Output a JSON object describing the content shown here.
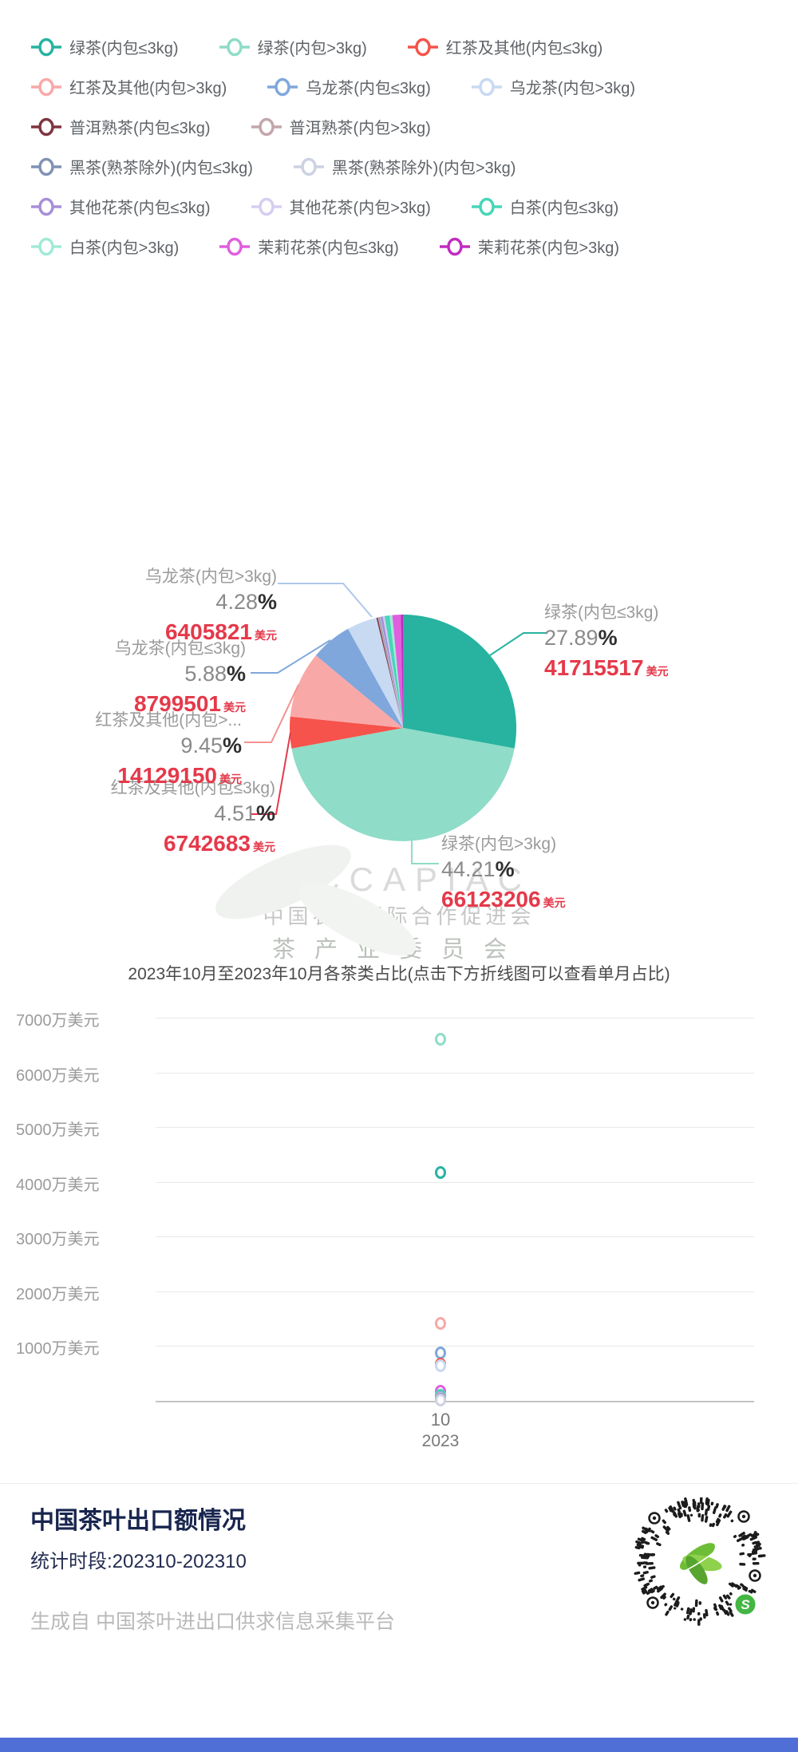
{
  "page": {
    "background": "#ffffff",
    "bottom_bar_color": "#4f6fd6"
  },
  "legend": {
    "rows": [
      [
        {
          "label": "绿茶(内包≤3kg)",
          "color": "#27b3a0"
        },
        {
          "label": "绿茶(内包>3kg)",
          "color": "#8fdcc8"
        },
        {
          "label": "红茶及其他(内包≤3kg)",
          "color": "#f5534b"
        }
      ],
      [
        {
          "label": "红茶及其他(内包>3kg)",
          "color": "#f9a8a8"
        },
        {
          "label": "乌龙茶(内包≤3kg)",
          "color": "#7fa7dc"
        },
        {
          "label": "乌龙茶(内包>3kg)",
          "color": "#c8d9f2"
        }
      ],
      [
        {
          "label": "普洱熟茶(内包≤3kg)",
          "color": "#7d3540"
        },
        {
          "label": "普洱熟茶(内包>3kg)",
          "color": "#c2a6ab"
        }
      ],
      [
        {
          "label": "黑茶(熟茶除外)(内包≤3kg)",
          "color": "#8092b4"
        },
        {
          "label": "黑茶(熟茶除外)(内包>3kg)",
          "color": "#ccd2e2"
        }
      ],
      [
        {
          "label": "其他花茶(内包≤3kg)",
          "color": "#a78fd8"
        },
        {
          "label": "其他花茶(内包>3kg)",
          "color": "#d6cdf0"
        },
        {
          "label": "白茶(内包≤3kg)",
          "color": "#46d6b8"
        }
      ],
      [
        {
          "label": "白茶(内包>3kg)",
          "color": "#a0ead6"
        },
        {
          "label": "茉莉花茶(内包≤3kg)",
          "color": "#df5fdf"
        },
        {
          "label": "茉莉花茶(内包>3kg)",
          "color": "#c02cc0"
        }
      ]
    ]
  },
  "chart_data": [
    {
      "type": "pie",
      "unit": "美元",
      "slices": [
        {
          "name": "绿茶(内包≤3kg)",
          "pct": 27.89,
          "value_usd": 41715517,
          "color": "#27b3a0"
        },
        {
          "name": "绿茶(内包>3kg)",
          "pct": 44.21,
          "value_usd": 66123206,
          "color": "#8fdcc8"
        },
        {
          "name": "红茶及其他(内包≤3kg)",
          "pct": 4.51,
          "value_usd": 6742683,
          "color": "#f5534b"
        },
        {
          "name": "红茶及其他(内包>3kg)",
          "display_name": "红茶及其他(内包>...",
          "pct": 9.45,
          "value_usd": 14129150,
          "color": "#f9a8a8"
        },
        {
          "name": "乌龙茶(内包≤3kg)",
          "pct": 5.88,
          "value_usd": 8799501,
          "color": "#7fa7dc"
        },
        {
          "name": "乌龙茶(内包>3kg)",
          "pct": 4.28,
          "value_usd": 6405821,
          "color": "#c8d9f2"
        },
        {
          "name": "普洱熟茶(内包≤3kg)",
          "pct_est": 0.2,
          "color": "#7d3540"
        },
        {
          "name": "普洱熟茶(内包>3kg)",
          "pct_est": 0.15,
          "color": "#c2a6ab"
        },
        {
          "name": "黑茶(熟茶除外)(内包≤3kg)",
          "pct_est": 0.15,
          "color": "#8092b4"
        },
        {
          "name": "黑茶(熟茶除外)(内包>3kg)",
          "pct_est": 0.08,
          "color": "#ccd2e2"
        },
        {
          "name": "其他花茶(内包≤3kg)",
          "pct_est": 0.35,
          "color": "#a78fd8"
        },
        {
          "name": "其他花茶(内包>3kg)",
          "pct_est": 0.25,
          "color": "#d6cdf0"
        },
        {
          "name": "白茶(内包≤3kg)",
          "pct_est": 0.7,
          "color": "#46d6b8"
        },
        {
          "name": "白茶(内包>3kg)",
          "pct_est": 0.4,
          "color": "#a0ead6"
        },
        {
          "name": "茉莉花茶(内包≤3kg)",
          "pct_est": 1.2,
          "color": "#df5fdf"
        },
        {
          "name": "茉莉花茶(内包>3kg)",
          "pct_est": 0.3,
          "color": "#c02cc0"
        }
      ]
    },
    {
      "type": "scatter",
      "title": "2023年10月至2023年10月各茶类占比(点击下方折线图可以查看单月占比)",
      "y_ticks": [
        "7000万美元",
        "6000万美元",
        "5000万美元",
        "4000万美元",
        "3000万美元",
        "2000万美元",
        "1000万美元"
      ],
      "y_max_wan": 7000,
      "x_tick": {
        "month": "10",
        "year": "2023"
      },
      "points": [
        {
          "name": "绿茶(内包>3kg)",
          "value_usd": 66123206,
          "color": "#8fdcc8"
        },
        {
          "name": "绿茶(内包≤3kg)",
          "value_usd": 41715517,
          "color": "#27b3a0"
        },
        {
          "name": "红茶及其他(内包>3kg)",
          "value_usd": 14129150,
          "color": "#f9a8a8"
        },
        {
          "name": "乌龙茶(内包≤3kg)",
          "value_usd": 8799501,
          "color": "#7fa7dc"
        },
        {
          "name": "红茶及其他(内包≤3kg)",
          "value_usd": 6742683,
          "color": "#f5534b"
        },
        {
          "name": "乌龙茶(内包>3kg)",
          "value_usd": 6405821,
          "color": "#c8d9f2"
        },
        {
          "name": "茉莉花茶(内包≤3kg)",
          "value_usd_est": 1800000,
          "color": "#df5fdf"
        },
        {
          "name": "白茶(内包≤3kg)",
          "value_usd_est": 1050000,
          "color": "#46d6b8"
        },
        {
          "name": "白茶(内包>3kg)",
          "value_usd_est": 600000,
          "color": "#a0ead6"
        },
        {
          "name": "其他花茶(内包≤3kg)",
          "value_usd_est": 520000,
          "color": "#a78fd8"
        },
        {
          "name": "茉莉花茶(内包>3kg)",
          "value_usd_est": 450000,
          "color": "#c02cc0"
        },
        {
          "name": "其他花茶(内包>3kg)",
          "value_usd_est": 370000,
          "color": "#d6cdf0"
        },
        {
          "name": "普洱熟茶(内包≤3kg)",
          "value_usd_est": 300000,
          "color": "#7d3540"
        },
        {
          "name": "普洱熟茶(内包>3kg)",
          "value_usd_est": 220000,
          "color": "#c2a6ab"
        },
        {
          "name": "黑茶(熟茶除外)(内包≤3kg)",
          "value_usd_est": 220000,
          "color": "#8092b4"
        },
        {
          "name": "黑茶(熟茶除外)(内包>3kg)",
          "value_usd_est": 120000,
          "color": "#ccd2e2"
        }
      ]
    }
  ],
  "watermark": {
    "latin": "TICCAPIAC",
    "line1": "中国农业国际合作促进会",
    "line2": "茶产业委员会"
  },
  "footer": {
    "title": "中国茶叶出口额情况",
    "period": "统计时段:202310-202310",
    "source": "生成自 中国茶叶进出口供求信息采集平台"
  }
}
